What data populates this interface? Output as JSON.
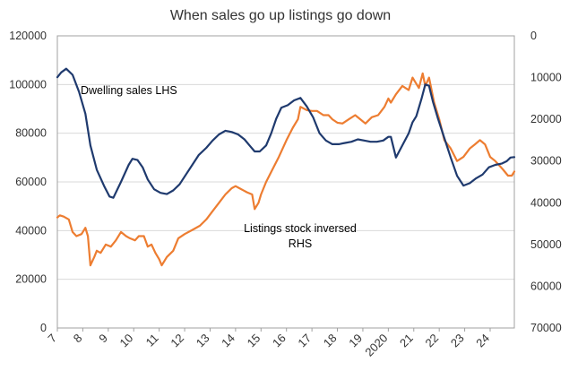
{
  "chart_data": {
    "type": "line",
    "title": "When sales go up listings go down",
    "x_ticks": [
      "7",
      "8",
      "9",
      "10",
      "11",
      "12",
      "13",
      "14",
      "15",
      "16",
      "17",
      "18",
      "19",
      "2020",
      "21",
      "22",
      "23",
      "24"
    ],
    "x_range": [
      2007,
      2024.95
    ],
    "y_left": {
      "range": [
        0,
        120000
      ],
      "ticks": [
        "0",
        "20000",
        "40000",
        "60000",
        "80000",
        "100000",
        "120000"
      ],
      "tick_values": [
        0,
        20000,
        40000,
        60000,
        80000,
        100000,
        120000
      ]
    },
    "y_right": {
      "range": [
        0,
        70000
      ],
      "inverted": true,
      "ticks": [
        "0",
        "10000",
        "20000",
        "30000",
        "40000",
        "50000",
        "60000",
        "70000"
      ],
      "tick_values": [
        0,
        10000,
        20000,
        30000,
        40000,
        50000,
        60000,
        70000
      ]
    },
    "annotations": [
      {
        "name": "sales-label",
        "text": "Dwelling  sales LHS"
      },
      {
        "name": "listings-label-1",
        "text": "Listings stock inversed"
      },
      {
        "name": "listings-label-2",
        "text": "RHS"
      }
    ],
    "gridlines": true,
    "series": [
      {
        "name": "Dwelling sales LHS",
        "axis": "left",
        "color": "#1f3a6e",
        "x": [
          2007.0,
          2007.15,
          2007.35,
          2007.6,
          2007.85,
          2008.1,
          2008.3,
          2008.55,
          2008.85,
          2009.05,
          2009.2,
          2009.5,
          2009.8,
          2009.95,
          2010.15,
          2010.35,
          2010.55,
          2010.8,
          2011.05,
          2011.3,
          2011.55,
          2011.8,
          2012.05,
          2012.3,
          2012.55,
          2012.85,
          2013.1,
          2013.35,
          2013.6,
          2013.85,
          2014.1,
          2014.35,
          2014.55,
          2014.75,
          2014.95,
          2015.2,
          2015.4,
          2015.6,
          2015.8,
          2016.05,
          2016.3,
          2016.55,
          2016.8,
          2017.05,
          2017.3,
          2017.55,
          2017.8,
          2018.05,
          2018.3,
          2018.55,
          2018.8,
          2019.05,
          2019.3,
          2019.55,
          2019.8,
          2020.0,
          2020.1,
          2020.3,
          2020.55,
          2020.8,
          2020.95,
          2021.1,
          2021.3,
          2021.45,
          2021.6,
          2021.75,
          2021.95,
          2022.2,
          2022.45,
          2022.7,
          2022.95,
          2023.2,
          2023.45,
          2023.7,
          2023.95,
          2024.2,
          2024.45,
          2024.65,
          2024.8,
          2024.95
        ],
        "values": [
          103000,
          105000,
          106500,
          104000,
          97000,
          88000,
          75000,
          65000,
          58000,
          54000,
          53500,
          60000,
          67000,
          69500,
          69000,
          66000,
          61000,
          57000,
          55500,
          55000,
          56500,
          59000,
          63000,
          67000,
          71000,
          74000,
          77000,
          79500,
          81000,
          80500,
          79500,
          77500,
          75000,
          72500,
          72500,
          75000,
          80000,
          86000,
          90500,
          91500,
          93500,
          94500,
          91000,
          86500,
          80000,
          77000,
          75500,
          75500,
          76000,
          76500,
          77500,
          77000,
          76500,
          76500,
          77000,
          78500,
          78500,
          70000,
          75000,
          80000,
          84500,
          87000,
          94000,
          100000,
          99500,
          93000,
          86000,
          78000,
          70000,
          62500,
          58500,
          59500,
          61500,
          63000,
          66000,
          67000,
          67500,
          68500,
          70000,
          70200
        ]
      },
      {
        "name": "Listings stock inversed RHS",
        "axis": "right",
        "color": "#ed7d31",
        "x": [
          2007.0,
          2007.1,
          2007.25,
          2007.45,
          2007.6,
          2007.75,
          2007.95,
          2008.1,
          2008.2,
          2008.3,
          2008.45,
          2008.55,
          2008.7,
          2008.9,
          2009.1,
          2009.3,
          2009.5,
          2009.7,
          2009.85,
          2010.05,
          2010.2,
          2010.4,
          2010.55,
          2010.7,
          2010.85,
          2011.0,
          2011.1,
          2011.3,
          2011.55,
          2011.75,
          2012.0,
          2012.3,
          2012.6,
          2012.85,
          2013.1,
          2013.35,
          2013.6,
          2013.85,
          2014.0,
          2014.15,
          2014.3,
          2014.45,
          2014.65,
          2014.75,
          2014.9,
          2015.0,
          2015.2,
          2015.45,
          2015.7,
          2016.0,
          2016.25,
          2016.45,
          2016.55,
          2016.8,
          2017.0,
          2017.2,
          2017.45,
          2017.65,
          2017.8,
          2018.0,
          2018.2,
          2018.45,
          2018.7,
          2018.9,
          2019.1,
          2019.35,
          2019.6,
          2019.85,
          2020.0,
          2020.1,
          2020.3,
          2020.55,
          2020.8,
          2020.95,
          2021.05,
          2021.2,
          2021.35,
          2021.45,
          2021.6,
          2021.8,
          2022.0,
          2022.2,
          2022.45,
          2022.7,
          2022.95,
          2023.2,
          2023.4,
          2023.6,
          2023.8,
          2024.0,
          2024.2,
          2024.35,
          2024.5,
          2024.7,
          2024.85,
          2024.95
        ],
        "values": [
          43500,
          43000,
          43300,
          44000,
          47000,
          48000,
          47500,
          46000,
          48000,
          55000,
          53000,
          51500,
          52000,
          50000,
          50500,
          49000,
          47000,
          48000,
          48500,
          49000,
          48000,
          48000,
          50500,
          50000,
          52000,
          53500,
          55000,
          53000,
          51500,
          48500,
          47500,
          46500,
          45500,
          44000,
          42000,
          40000,
          38000,
          36500,
          36000,
          36500,
          37000,
          37500,
          38000,
          41500,
          40000,
          38000,
          35000,
          32000,
          29000,
          25000,
          22000,
          20000,
          17000,
          17800,
          18000,
          18000,
          19000,
          19000,
          20000,
          20800,
          21000,
          20000,
          19000,
          20000,
          21000,
          19500,
          19000,
          17000,
          15000,
          16000,
          14000,
          12000,
          13000,
          10000,
          11000,
          12500,
          9000,
          12000,
          10000,
          16000,
          20000,
          25000,
          27000,
          30000,
          29000,
          27000,
          26000,
          25000,
          26000,
          29000,
          30000,
          31000,
          32000,
          33500,
          33500,
          32500
        ]
      }
    ]
  }
}
